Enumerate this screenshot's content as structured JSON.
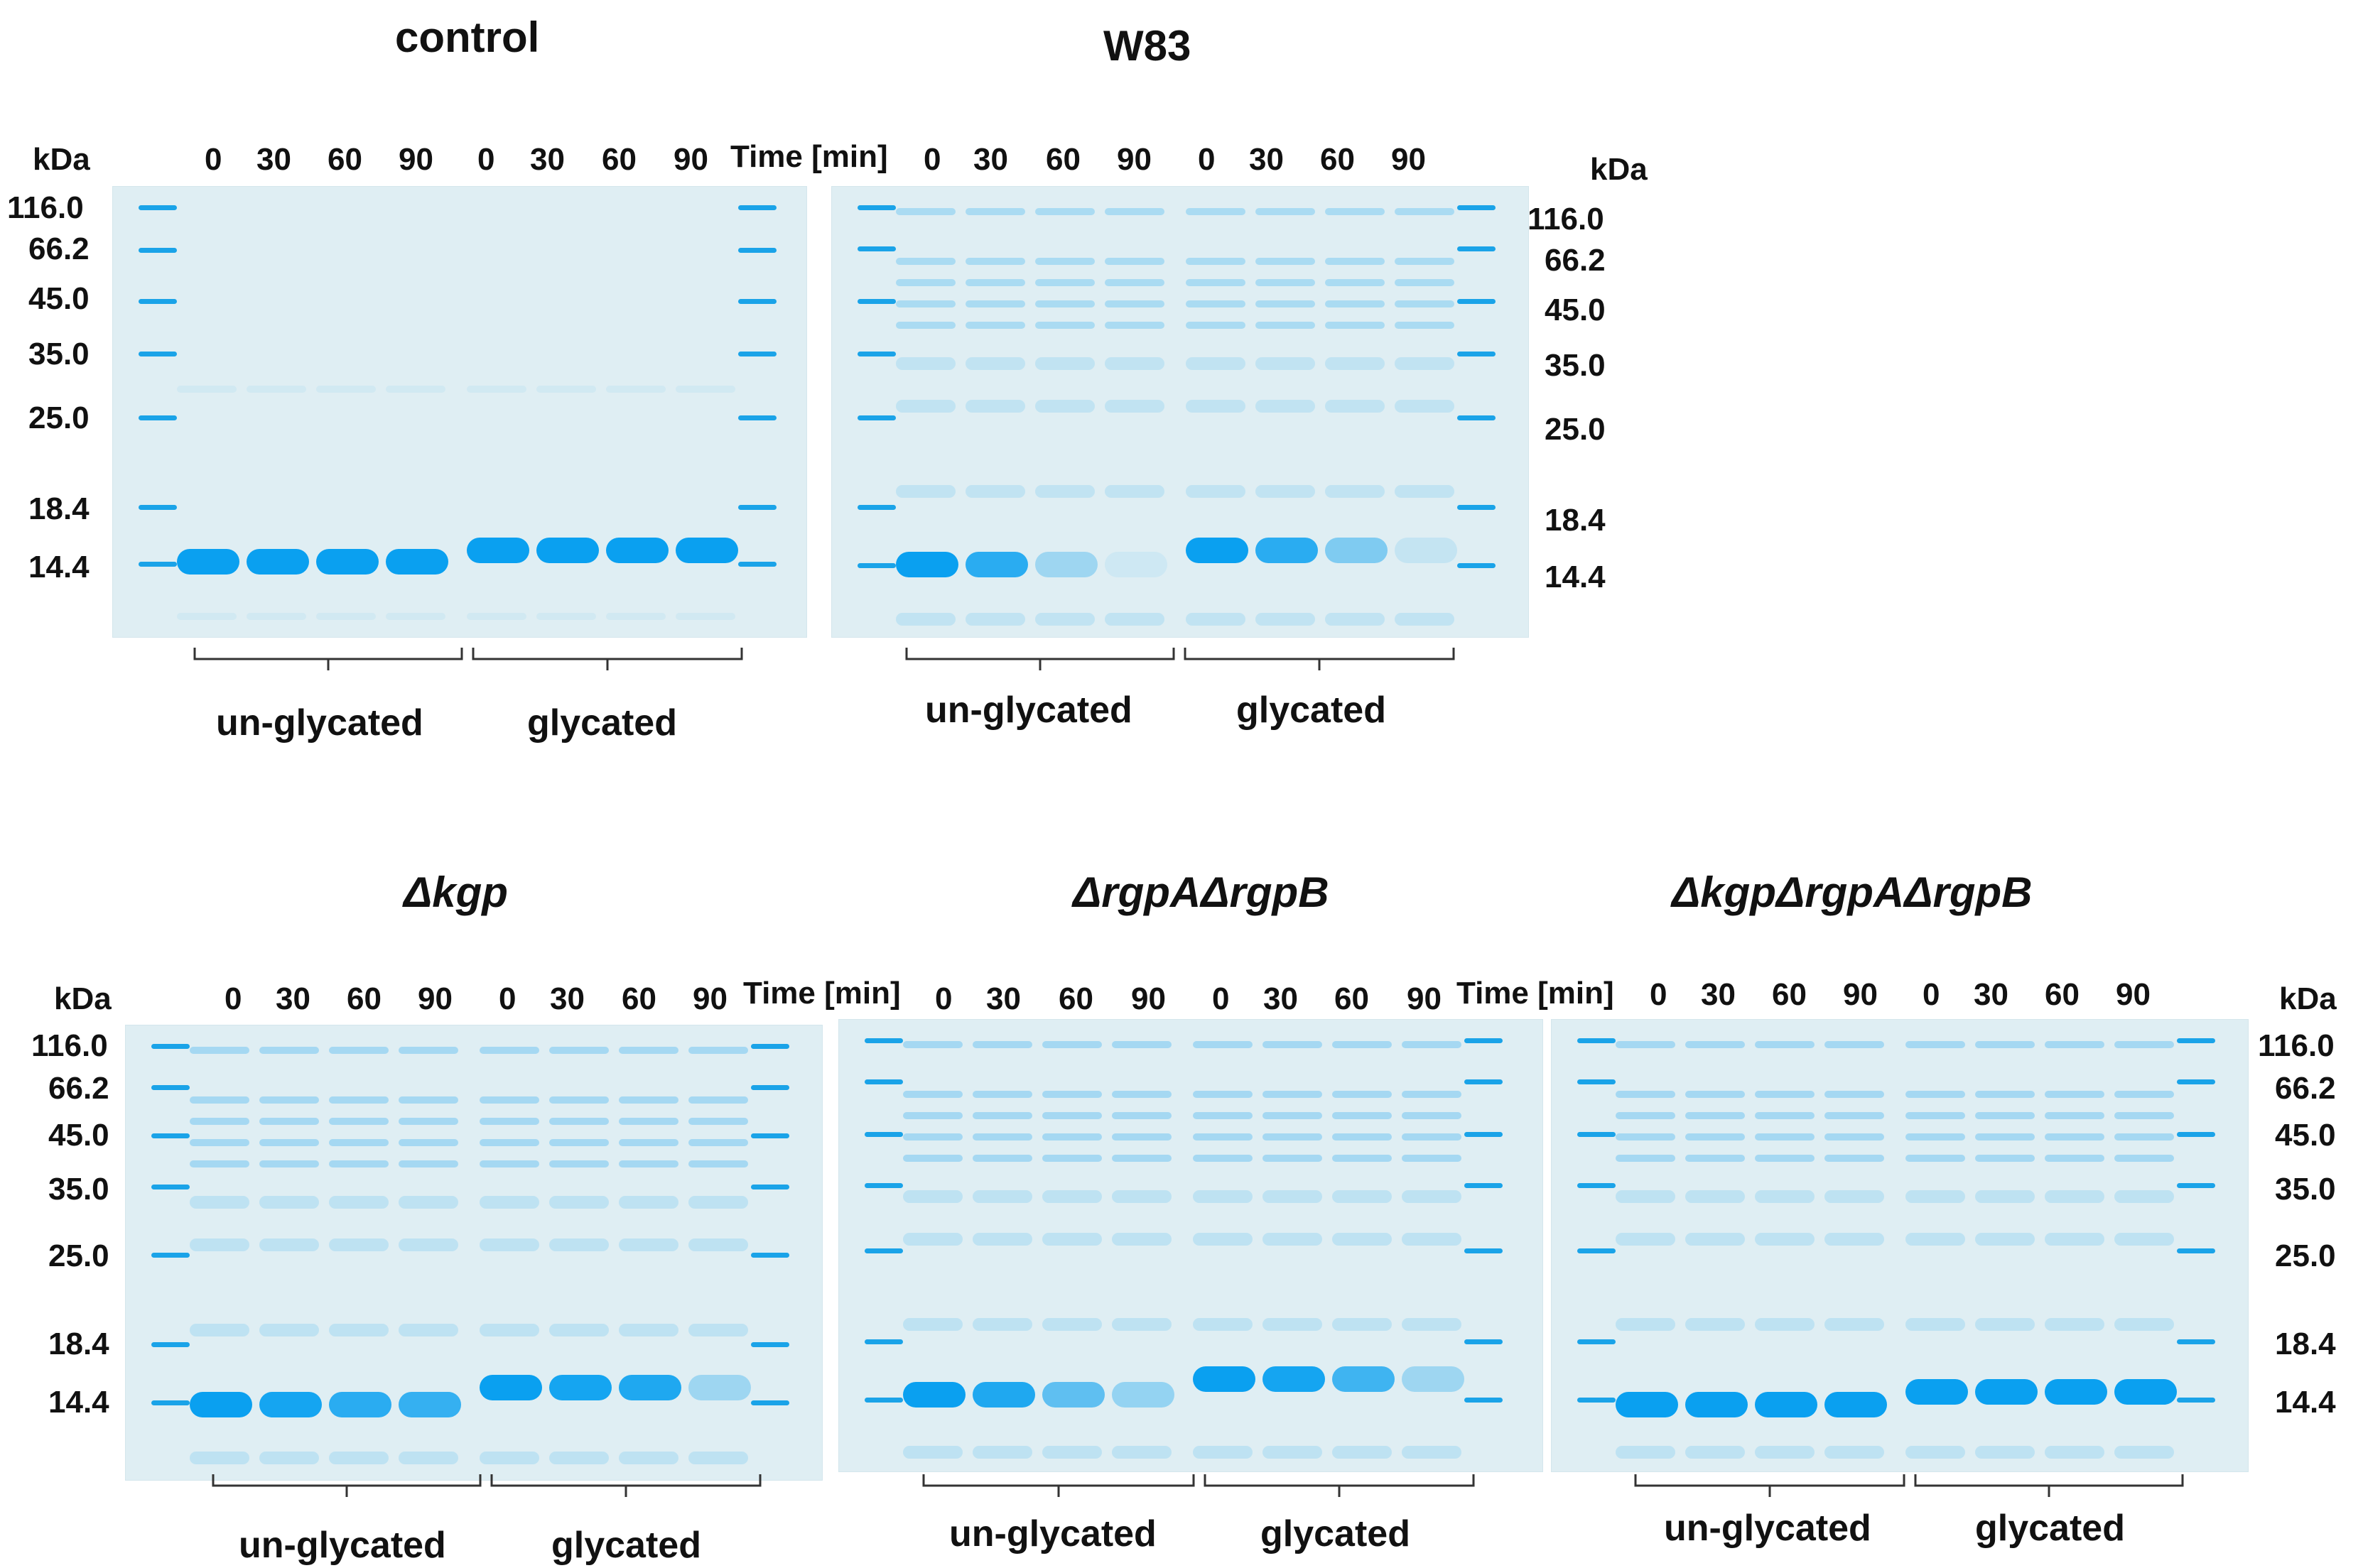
{
  "colors": {
    "gel_bg": "#dfeef3",
    "band_strong": "#0aa0f0",
    "band_mid": "#47b6ee",
    "band_faint": "#bcdff0",
    "marker": "#1aa3e8",
    "text": "#111111",
    "bracket": "#333333"
  },
  "common": {
    "kda_label": "kDa",
    "time_label": "Time [min]",
    "time_points": [
      "0",
      "30",
      "60",
      "90"
    ],
    "molecular_weights": [
      "116.0",
      "66.2",
      "45.0",
      "35.0",
      "25.0",
      "18.4",
      "14.4"
    ],
    "group_unglycated": "un-glycated",
    "group_glycated": "glycated"
  },
  "panels": [
    {
      "id": "control",
      "title": "control",
      "italic": false,
      "unglycated_intensity": [
        1.0,
        1.0,
        1.0,
        1.0
      ],
      "glycated_intensity": [
        1.0,
        1.0,
        1.0,
        1.0
      ],
      "background_smear": 0.15
    },
    {
      "id": "w83",
      "title": "W83",
      "italic": false,
      "unglycated_intensity": [
        1.0,
        0.85,
        0.3,
        0.08
      ],
      "glycated_intensity": [
        1.0,
        0.85,
        0.45,
        0.12
      ],
      "background_smear": 0.55
    },
    {
      "id": "dkgp",
      "title": "Δkgp",
      "italic": true,
      "unglycated_intensity": [
        1.0,
        0.95,
        0.85,
        0.8
      ],
      "glycated_intensity": [
        1.0,
        0.95,
        0.9,
        0.3
      ],
      "background_smear": 0.6
    },
    {
      "id": "drgpa-drgpb",
      "title": "ΔrgpAΔrgpB",
      "italic": true,
      "unglycated_intensity": [
        1.0,
        0.9,
        0.6,
        0.35
      ],
      "glycated_intensity": [
        1.0,
        0.95,
        0.75,
        0.3
      ],
      "background_smear": 0.6
    },
    {
      "id": "dkgp-drgpa-drgpb",
      "title": "ΔkgpΔrgpAΔrgpB",
      "italic": true,
      "unglycated_intensity": [
        1.0,
        1.0,
        1.0,
        1.0
      ],
      "glycated_intensity": [
        1.0,
        1.0,
        1.0,
        1.0
      ],
      "background_smear": 0.6
    }
  ]
}
